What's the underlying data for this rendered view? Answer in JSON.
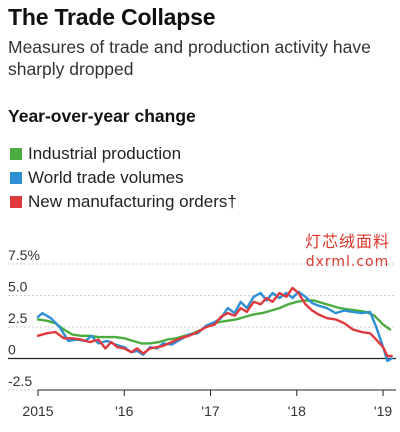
{
  "header": {
    "title": "The Trade Collapse",
    "subtitle": "Measures of trade and production activity have sharply dropped",
    "section": "Year-over-year change"
  },
  "watermark": {
    "line1": "灯芯绒面料",
    "line2": "dxrml.com"
  },
  "chart_data": {
    "type": "line",
    "ylabel": "",
    "ylim": [
      -2.5,
      7.5
    ],
    "y_ticks": [
      7.5,
      5.0,
      2.5,
      0,
      -2.5
    ],
    "y_tick_labels": [
      "7.5%",
      "5.0",
      "2.5",
      "0",
      "-2.5"
    ],
    "xlim": [
      2015,
      2019.15
    ],
    "x_ticks": [
      2015,
      2016,
      2017,
      2018,
      2019
    ],
    "x_tick_labels": [
      "2015",
      "'16",
      "'17",
      "'18",
      "'19"
    ],
    "grid": "horizontal",
    "legend_position": "top-left",
    "series": [
      {
        "name": "Industrial production",
        "color": "#4aac3f",
        "points": [
          [
            2015.0,
            3.1
          ],
          [
            2015.1,
            3.0
          ],
          [
            2015.2,
            2.8
          ],
          [
            2015.3,
            2.3
          ],
          [
            2015.4,
            1.9
          ],
          [
            2015.5,
            1.8
          ],
          [
            2015.6,
            1.8
          ],
          [
            2015.7,
            1.7
          ],
          [
            2015.8,
            1.7
          ],
          [
            2015.9,
            1.7
          ],
          [
            2016.0,
            1.6
          ],
          [
            2016.1,
            1.4
          ],
          [
            2016.2,
            1.2
          ],
          [
            2016.3,
            1.2
          ],
          [
            2016.4,
            1.3
          ],
          [
            2016.5,
            1.5
          ],
          [
            2016.6,
            1.6
          ],
          [
            2016.7,
            1.8
          ],
          [
            2016.8,
            2.0
          ],
          [
            2016.9,
            2.3
          ],
          [
            2017.0,
            2.7
          ],
          [
            2017.1,
            2.9
          ],
          [
            2017.2,
            3.0
          ],
          [
            2017.3,
            3.1
          ],
          [
            2017.4,
            3.3
          ],
          [
            2017.5,
            3.5
          ],
          [
            2017.6,
            3.6
          ],
          [
            2017.7,
            3.8
          ],
          [
            2017.8,
            4.0
          ],
          [
            2017.9,
            4.3
          ],
          [
            2018.0,
            4.5
          ],
          [
            2018.1,
            4.6
          ],
          [
            2018.2,
            4.6
          ],
          [
            2018.3,
            4.4
          ],
          [
            2018.4,
            4.2
          ],
          [
            2018.5,
            4.0
          ],
          [
            2018.6,
            3.9
          ],
          [
            2018.7,
            3.8
          ],
          [
            2018.8,
            3.7
          ],
          [
            2018.9,
            3.4
          ],
          [
            2019.0,
            2.7
          ],
          [
            2019.08,
            2.3
          ]
        ]
      },
      {
        "name": "World trade volumes",
        "color": "#2d8fd4",
        "points": [
          [
            2015.0,
            3.3
          ],
          [
            2015.05,
            3.6
          ],
          [
            2015.15,
            3.2
          ],
          [
            2015.25,
            2.5
          ],
          [
            2015.35,
            1.4
          ],
          [
            2015.45,
            1.5
          ],
          [
            2015.55,
            1.4
          ],
          [
            2015.62,
            1.8
          ],
          [
            2015.7,
            1.2
          ],
          [
            2015.8,
            1.4
          ],
          [
            2015.9,
            1.1
          ],
          [
            2016.0,
            0.9
          ],
          [
            2016.08,
            0.5
          ],
          [
            2016.15,
            0.6
          ],
          [
            2016.22,
            0.3
          ],
          [
            2016.3,
            0.9
          ],
          [
            2016.38,
            0.8
          ],
          [
            2016.45,
            1.2
          ],
          [
            2016.55,
            1.1
          ],
          [
            2016.65,
            1.5
          ],
          [
            2016.75,
            1.9
          ],
          [
            2016.85,
            2.0
          ],
          [
            2016.95,
            2.6
          ],
          [
            2017.05,
            2.9
          ],
          [
            2017.12,
            3.2
          ],
          [
            2017.2,
            4.0
          ],
          [
            2017.28,
            3.6
          ],
          [
            2017.35,
            4.5
          ],
          [
            2017.42,
            4.0
          ],
          [
            2017.5,
            4.9
          ],
          [
            2017.58,
            5.2
          ],
          [
            2017.65,
            4.6
          ],
          [
            2017.72,
            5.2
          ],
          [
            2017.8,
            4.8
          ],
          [
            2017.88,
            5.2
          ],
          [
            2017.95,
            4.8
          ],
          [
            2018.02,
            5.3
          ],
          [
            2018.1,
            4.9
          ],
          [
            2018.18,
            4.4
          ],
          [
            2018.25,
            4.2
          ],
          [
            2018.35,
            4.0
          ],
          [
            2018.45,
            3.6
          ],
          [
            2018.55,
            3.8
          ],
          [
            2018.65,
            3.7
          ],
          [
            2018.75,
            3.6
          ],
          [
            2018.85,
            3.7
          ],
          [
            2018.92,
            2.5
          ],
          [
            2019.0,
            0.9
          ],
          [
            2019.05,
            -0.2
          ],
          [
            2019.1,
            0.0
          ]
        ]
      },
      {
        "name": "New manufacturing orders†",
        "color": "#e03a3e",
        "points": [
          [
            2015.0,
            1.8
          ],
          [
            2015.1,
            2.0
          ],
          [
            2015.2,
            2.1
          ],
          [
            2015.3,
            1.6
          ],
          [
            2015.4,
            1.6
          ],
          [
            2015.5,
            1.5
          ],
          [
            2015.6,
            1.3
          ],
          [
            2015.7,
            1.5
          ],
          [
            2015.78,
            0.8
          ],
          [
            2015.85,
            1.3
          ],
          [
            2015.92,
            0.9
          ],
          [
            2016.0,
            0.8
          ],
          [
            2016.08,
            0.5
          ],
          [
            2016.15,
            0.8
          ],
          [
            2016.22,
            0.4
          ],
          [
            2016.3,
            0.8
          ],
          [
            2016.38,
            0.9
          ],
          [
            2016.45,
            1.0
          ],
          [
            2016.55,
            1.3
          ],
          [
            2016.65,
            1.6
          ],
          [
            2016.75,
            1.8
          ],
          [
            2016.85,
            2.1
          ],
          [
            2016.95,
            2.5
          ],
          [
            2017.05,
            2.7
          ],
          [
            2017.12,
            3.3
          ],
          [
            2017.2,
            3.6
          ],
          [
            2017.28,
            3.4
          ],
          [
            2017.35,
            4.0
          ],
          [
            2017.42,
            3.7
          ],
          [
            2017.5,
            4.5
          ],
          [
            2017.58,
            4.3
          ],
          [
            2017.65,
            4.8
          ],
          [
            2017.72,
            4.5
          ],
          [
            2017.8,
            5.2
          ],
          [
            2017.88,
            4.9
          ],
          [
            2017.95,
            5.6
          ],
          [
            2018.02,
            5.2
          ],
          [
            2018.1,
            4.3
          ],
          [
            2018.18,
            3.8
          ],
          [
            2018.25,
            3.5
          ],
          [
            2018.35,
            3.2
          ],
          [
            2018.45,
            3.1
          ],
          [
            2018.55,
            2.8
          ],
          [
            2018.65,
            2.3
          ],
          [
            2018.75,
            2.1
          ],
          [
            2018.85,
            2.0
          ],
          [
            2018.92,
            1.5
          ],
          [
            2019.0,
            0.9
          ],
          [
            2019.05,
            0.2
          ],
          [
            2019.1,
            0.2
          ]
        ]
      }
    ]
  }
}
